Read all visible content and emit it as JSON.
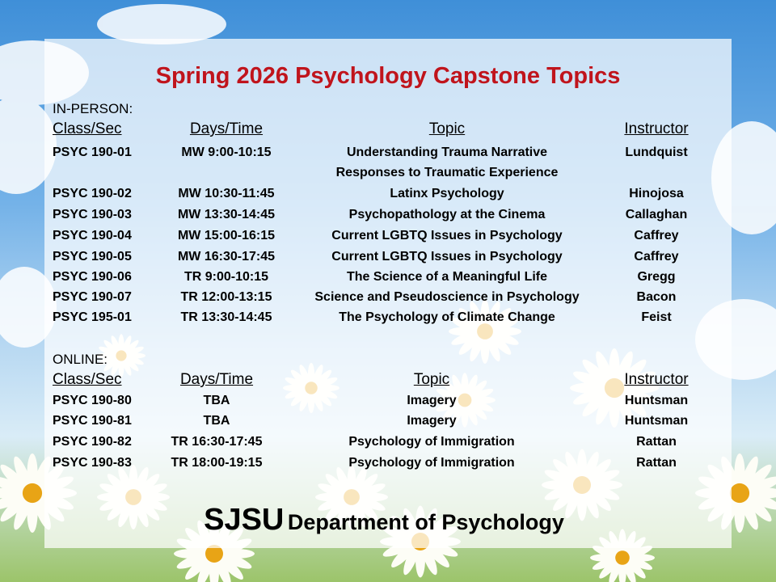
{
  "title": "Spring 2026 Psychology Capstone Topics",
  "in_person": {
    "label": "IN-PERSON:",
    "headers": [
      "Class/Sec",
      "Days/Time",
      "Topic",
      "Instructor"
    ],
    "rows": [
      [
        "PSYC 190-01",
        "MW 9:00-10:15",
        "Understanding Trauma Narrative",
        "Lundquist"
      ],
      [
        "",
        "",
        "Responses to Traumatic Experience",
        ""
      ],
      [
        "PSYC 190-02",
        "MW 10:30-11:45",
        "Latinx Psychology",
        "Hinojosa"
      ],
      [
        "PSYC 190-03",
        "MW 13:30-14:45",
        "Psychopathology at the Cinema",
        "Callaghan"
      ],
      [
        "PSYC 190-04",
        "MW 15:00-16:15",
        "Current LGBTQ Issues in Psychology",
        "Caffrey"
      ],
      [
        "PSYC 190-05",
        "MW 16:30-17:45",
        "Current LGBTQ Issues in Psychology",
        "Caffrey"
      ],
      [
        "PSYC 190-06",
        "TR 9:00-10:15",
        "The Science of a Meaningful Life",
        "Gregg"
      ],
      [
        "PSYC 190-07",
        "TR 12:00-13:15",
        "Science and Pseudoscience in Psychology",
        "Bacon"
      ],
      [
        "PSYC 195-01",
        "TR 13:30-14:45",
        "The Psychology of Climate Change",
        "Feist"
      ]
    ]
  },
  "online": {
    "label": "ONLINE:",
    "headers": [
      "Class/Sec",
      "Days/Time",
      "Topic",
      "Instructor"
    ],
    "rows": [
      [
        "PSYC 190-80",
        "TBA",
        "Imagery",
        "Huntsman"
      ],
      [
        "PSYC 190-81",
        "TBA",
        "Imagery",
        "Huntsman"
      ],
      [
        "PSYC 190-82",
        "TR 16:30-17:45",
        "Psychology of Immigration",
        "Rattan"
      ],
      [
        "PSYC 190-83",
        "TR 18:00-19:15",
        "Psychology of Immigration",
        "Rattan"
      ]
    ]
  },
  "footer": {
    "org": "SJSU",
    "dept": "Department of Psychology"
  },
  "colors": {
    "title": "#c0141c",
    "sky": "#4a93d8"
  }
}
